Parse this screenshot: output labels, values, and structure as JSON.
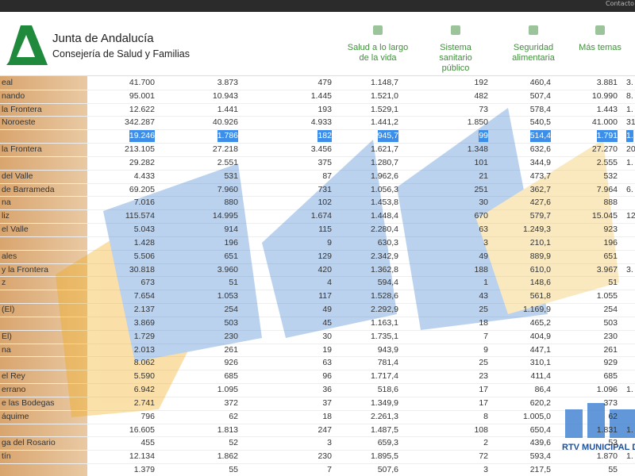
{
  "top_bar": {
    "link": "Contacto"
  },
  "header": {
    "brand": "Junta de Andalucía",
    "department": "Consejería de Salud y Familias",
    "nav": [
      [
        "Salud a lo largo",
        "de la vida"
      ],
      [
        "Sistema",
        "sanitario",
        "público"
      ],
      [
        "Seguridad",
        "alimentaria"
      ],
      [
        "Más temas"
      ]
    ]
  },
  "table": {
    "selected_row": 4,
    "rows": [
      {
        "name": "eal",
        "cells": [
          "41.700",
          "3.873",
          "479",
          "1.148,7",
          "192",
          "460,4",
          "3.881",
          "3."
        ]
      },
      {
        "name": "nando",
        "cells": [
          "95.001",
          "10.943",
          "1.445",
          "1.521,0",
          "482",
          "507,4",
          "10.990",
          "8."
        ]
      },
      {
        "name": "la Frontera",
        "cells": [
          "12.622",
          "1.441",
          "193",
          "1.529,1",
          "73",
          "578,4",
          "1.443",
          "1."
        ]
      },
      {
        "name": "Noroeste",
        "cells": [
          "342.287",
          "40.926",
          "4.933",
          "1.441,2",
          "1.850",
          "540,5",
          "41.000",
          "31."
        ]
      },
      {
        "cells": [
          "19.246",
          "1.786",
          "182",
          "945,7",
          "99",
          "514,4",
          "1.791",
          "1."
        ]
      },
      {
        "name": "la Frontera",
        "cells": [
          "213.105",
          "27.218",
          "3.456",
          "1.621,7",
          "1.348",
          "632,6",
          "27.270",
          "20."
        ]
      },
      {
        "cells": [
          "29.282",
          "2.551",
          "375",
          "1.280,7",
          "101",
          "344,9",
          "2.555",
          "1."
        ]
      },
      {
        "name": "del Valle",
        "cells": [
          "4.433",
          "531",
          "87",
          "1.962,6",
          "21",
          "473,7",
          "532"
        ]
      },
      {
        "name": "de Barrameda",
        "cells": [
          "69.205",
          "7.960",
          "731",
          "1.056,3",
          "251",
          "362,7",
          "7.964",
          "6."
        ]
      },
      {
        "name": "na",
        "cells": [
          "7.016",
          "880",
          "102",
          "1.453,8",
          "30",
          "427,6",
          "888"
        ]
      },
      {
        "name": "liz",
        "cells": [
          "115.574",
          "14.995",
          "1.674",
          "1.448,4",
          "670",
          "579,7",
          "15.045",
          "12."
        ]
      },
      {
        "name": "el Valle",
        "cells": [
          "5.043",
          "914",
          "115",
          "2.280,4",
          "63",
          "1.249,3",
          "923"
        ]
      },
      {
        "cells": [
          "1.428",
          "196",
          "9",
          "630,3",
          "3",
          "210,1",
          "196"
        ]
      },
      {
        "name": "ales",
        "cells": [
          "5.506",
          "651",
          "129",
          "2.342,9",
          "49",
          "889,9",
          "651"
        ]
      },
      {
        "name": "y la Frontera",
        "cells": [
          "30.818",
          "3.960",
          "420",
          "1.362,8",
          "188",
          "610,0",
          "3.967",
          "3."
        ]
      },
      {
        "name": "z",
        "cells": [
          "673",
          "51",
          "4",
          "594,4",
          "1",
          "148,6",
          "51"
        ]
      },
      {
        "cells": [
          "7.654",
          "1.053",
          "117",
          "1.528,6",
          "43",
          "561,8",
          "1.055"
        ]
      },
      {
        "name": "(El)",
        "cells": [
          "2.137",
          "254",
          "49",
          "2.292,9",
          "25",
          "1.169,9",
          "254"
        ]
      },
      {
        "cells": [
          "3.869",
          "503",
          "45",
          "1.163,1",
          "18",
          "465,2",
          "503"
        ]
      },
      {
        "name": "El)",
        "cells": [
          "1.729",
          "230",
          "30",
          "1.735,1",
          "7",
          "404,9",
          "230"
        ]
      },
      {
        "name": "na",
        "cells": [
          "2.013",
          "261",
          "19",
          "943,9",
          "9",
          "447,1",
          "261"
        ]
      },
      {
        "cells": [
          "8.062",
          "926",
          "63",
          "781,4",
          "25",
          "310,1",
          "929"
        ]
      },
      {
        "name": "el Rey",
        "cells": [
          "5.590",
          "685",
          "96",
          "1.717,4",
          "23",
          "411,4",
          "685"
        ]
      },
      {
        "name": "errano",
        "cells": [
          "6.942",
          "1.095",
          "36",
          "518,6",
          "17",
          "86,4",
          "1.096",
          "1."
        ]
      },
      {
        "name": "e las Bodegas",
        "cells": [
          "2.741",
          "372",
          "37",
          "1.349,9",
          "17",
          "620,2",
          "373"
        ]
      },
      {
        "name": "áquime",
        "cells": [
          "796",
          "62",
          "18",
          "2.261,3",
          "8",
          "1.005,0",
          "62"
        ]
      },
      {
        "cells": [
          "16.605",
          "1.813",
          "247",
          "1.487,5",
          "108",
          "650,4",
          "1.831",
          "1."
        ]
      },
      {
        "name": "ga del Rosario",
        "cells": [
          "455",
          "52",
          "3",
          "659,3",
          "2",
          "439,6",
          "53"
        ]
      },
      {
        "name": "tín",
        "cells": [
          "12.134",
          "1.862",
          "230",
          "1.895,5",
          "72",
          "593,4",
          "1.870",
          "1."
        ]
      },
      {
        "cells": [
          "1.379",
          "55",
          "7",
          "507,6",
          "3",
          "217,5",
          "55"
        ]
      }
    ]
  },
  "watermark": {
    "text": "RTV MUNICIPAL DE CH"
  }
}
